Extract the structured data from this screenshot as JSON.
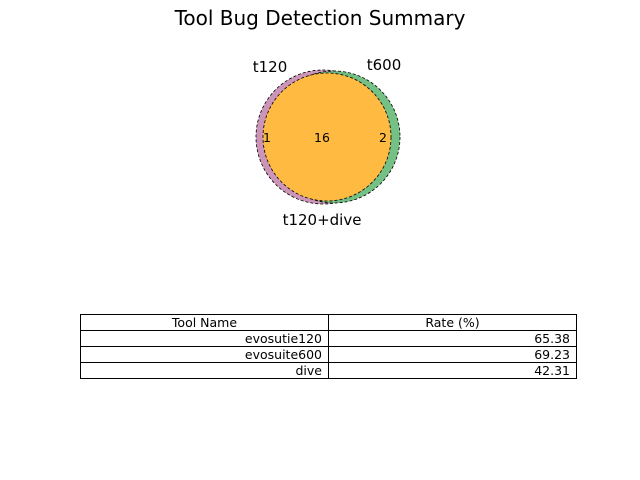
{
  "chart_data": [
    {
      "type": "venn",
      "title": "Tool Bug Detection Summary",
      "sets": [
        "t120",
        "t600",
        "t120+dive"
      ],
      "regions": [
        {
          "label": "1",
          "sets": [
            "t120",
            "t120+dive"
          ]
        },
        {
          "label": "16",
          "sets": [
            "t120",
            "t600",
            "t120+dive"
          ]
        },
        {
          "label": "2",
          "sets": [
            "t600",
            "t120+dive"
          ]
        }
      ],
      "colors": {
        "t120": "#c98fb4",
        "t600": "#6dbd7e",
        "t120+dive": "#ffba42"
      }
    },
    {
      "type": "table",
      "columns": [
        "Tool Name",
        "Rate (%)"
      ],
      "rows": [
        [
          "evosutie120",
          "65.38"
        ],
        [
          "evosuite600",
          "69.23"
        ],
        [
          "dive",
          "42.31"
        ]
      ]
    }
  ]
}
